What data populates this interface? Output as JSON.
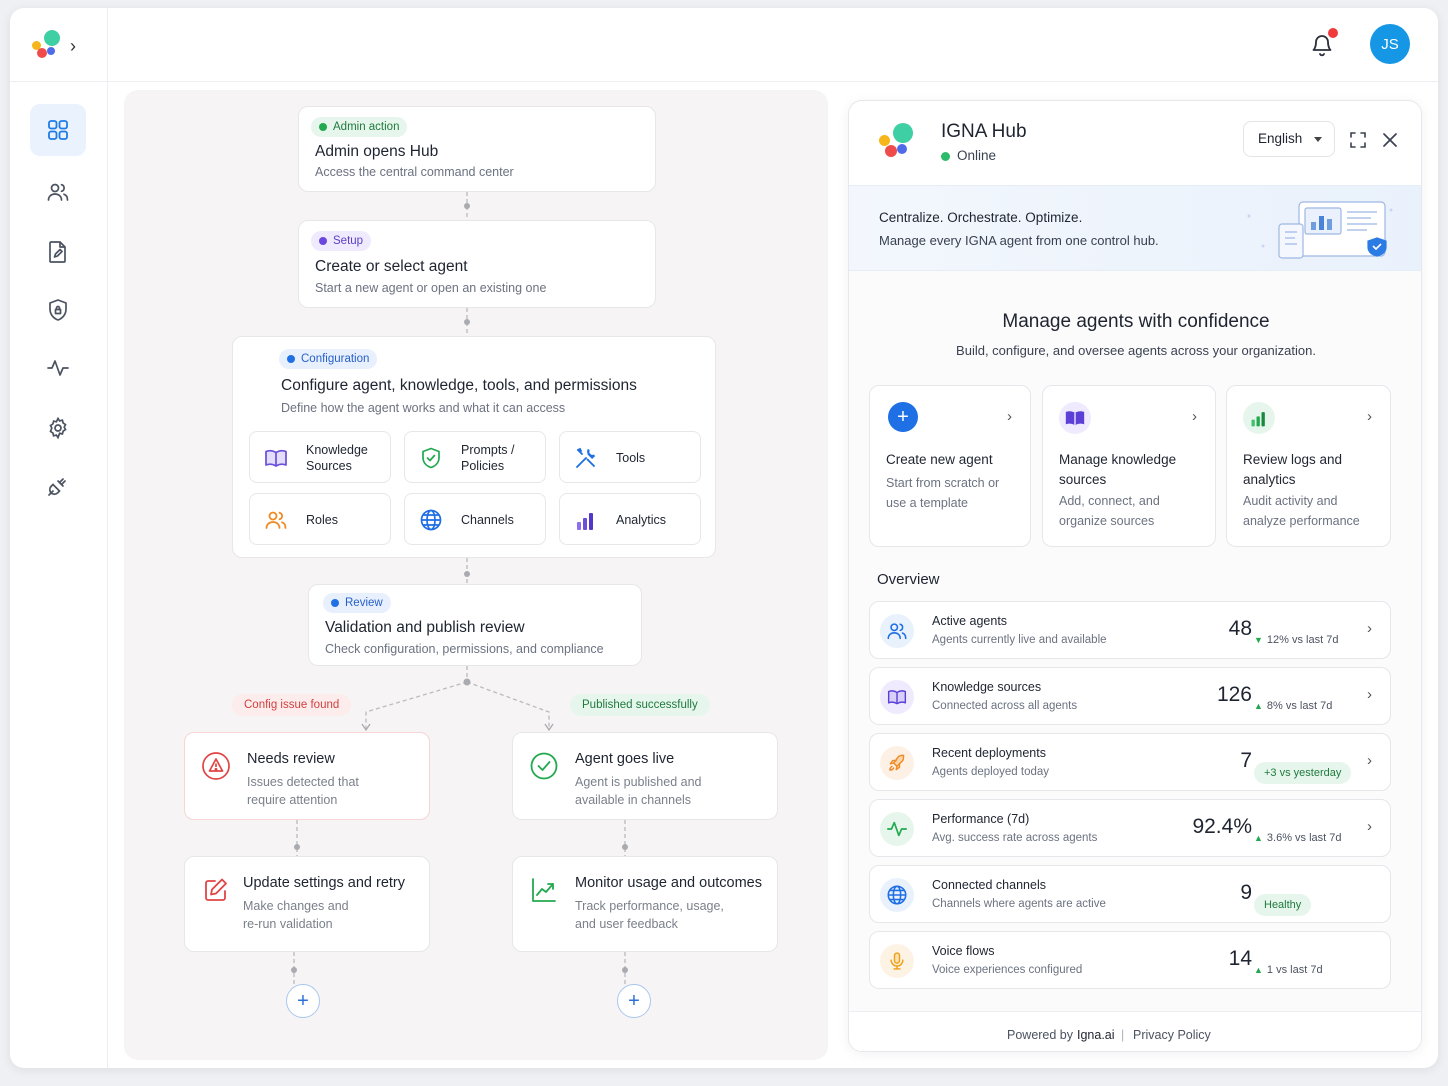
{
  "user": {
    "initials": "JS"
  },
  "workflow": {
    "admin": {
      "pill": "Admin action",
      "title": "Admin opens Hub",
      "sub": "Access the central command center"
    },
    "setup": {
      "pill": "Setup",
      "title": "Create or select agent",
      "sub": "Start a new agent or open an existing one"
    },
    "config": {
      "pill": "Configuration",
      "title": "Configure agent, knowledge, tools, and permissions",
      "sub": "Define how the agent works and what it can access",
      "items": [
        {
          "label": "Knowledge Sources",
          "icon": "book-icon"
        },
        {
          "label": "Prompts / Policies",
          "icon": "shield-check-icon"
        },
        {
          "label": "Tools",
          "icon": "tools-icon"
        },
        {
          "label": "Roles",
          "icon": "users-icon"
        },
        {
          "label": "Channels",
          "icon": "globe-icon"
        },
        {
          "label": "Analytics",
          "icon": "bar-chart-icon"
        }
      ]
    },
    "review": {
      "pill": "Review",
      "title": "Validation and publish review",
      "sub": "Check configuration, permissions, and compliance"
    },
    "branch_fail": "Config issue found",
    "branch_ok": "Published successfully",
    "needs_review": {
      "title": "Needs review",
      "sub": "Issues detected that require attention"
    },
    "goes_live": {
      "title": "Agent goes live",
      "sub": "Agent is published and available in channels"
    },
    "update": {
      "title": "Update settings and retry",
      "sub": "Make changes and re-run validation"
    },
    "monitor": {
      "title": "Monitor usage and outcomes",
      "sub": "Track performance, usage, and user feedback"
    },
    "add_symbol": "+"
  },
  "panel": {
    "title": "IGNA Hub",
    "status": "Online",
    "language": "English",
    "banner_title": "Centralize. Orchestrate. Optimize.",
    "banner_sub": "Manage every IGNA agent from one control hub.",
    "main_title": "Manage agents with confidence",
    "main_sub": "Build, configure, and oversee agents across your organization.",
    "actions": [
      {
        "title": "Create new agent",
        "sub": "Start from scratch or use a template"
      },
      {
        "title": "Manage knowledge sources",
        "sub": "Add, connect, and organize sources"
      },
      {
        "title": "Review logs and analytics",
        "sub": "Audit activity and analyze performance"
      }
    ],
    "overview_title": "Overview",
    "overview": [
      {
        "title": "Active agents",
        "sub": "Agents currently live and available",
        "value": "48",
        "delta": "12% vs last 7d",
        "dir": "down",
        "icon": "users-icon"
      },
      {
        "title": "Knowledge sources",
        "sub": "Connected across all agents",
        "value": "126",
        "delta": "8% vs last 7d",
        "dir": "up",
        "icon": "book-icon"
      },
      {
        "title": "Recent deployments",
        "sub": "Agents deployed today",
        "value": "7",
        "badge": "+3 vs yesterday",
        "icon": "rocket-icon"
      },
      {
        "title": "Performance (7d)",
        "sub": "Avg. success rate across agents",
        "value": "92.4%",
        "delta": "3.6% vs last 7d",
        "dir": "up",
        "icon": "pulse-icon"
      },
      {
        "title": "Connected channels",
        "sub": "Channels where agents are active",
        "value": "9",
        "badge": "Healthy",
        "icon": "globe-icon"
      },
      {
        "title": "Voice flows",
        "sub": "Voice experiences configured",
        "value": "14",
        "delta": "1 vs last 7d",
        "dir": "up",
        "icon": "mic-icon"
      }
    ],
    "footer_powered": "Powered by",
    "footer_brand": "Igna.ai",
    "footer_sep": "|",
    "footer_privacy": "Privacy Policy"
  },
  "colors": {
    "accent": "#1597e5",
    "success": "#22a94f",
    "danger": "#e04545"
  }
}
